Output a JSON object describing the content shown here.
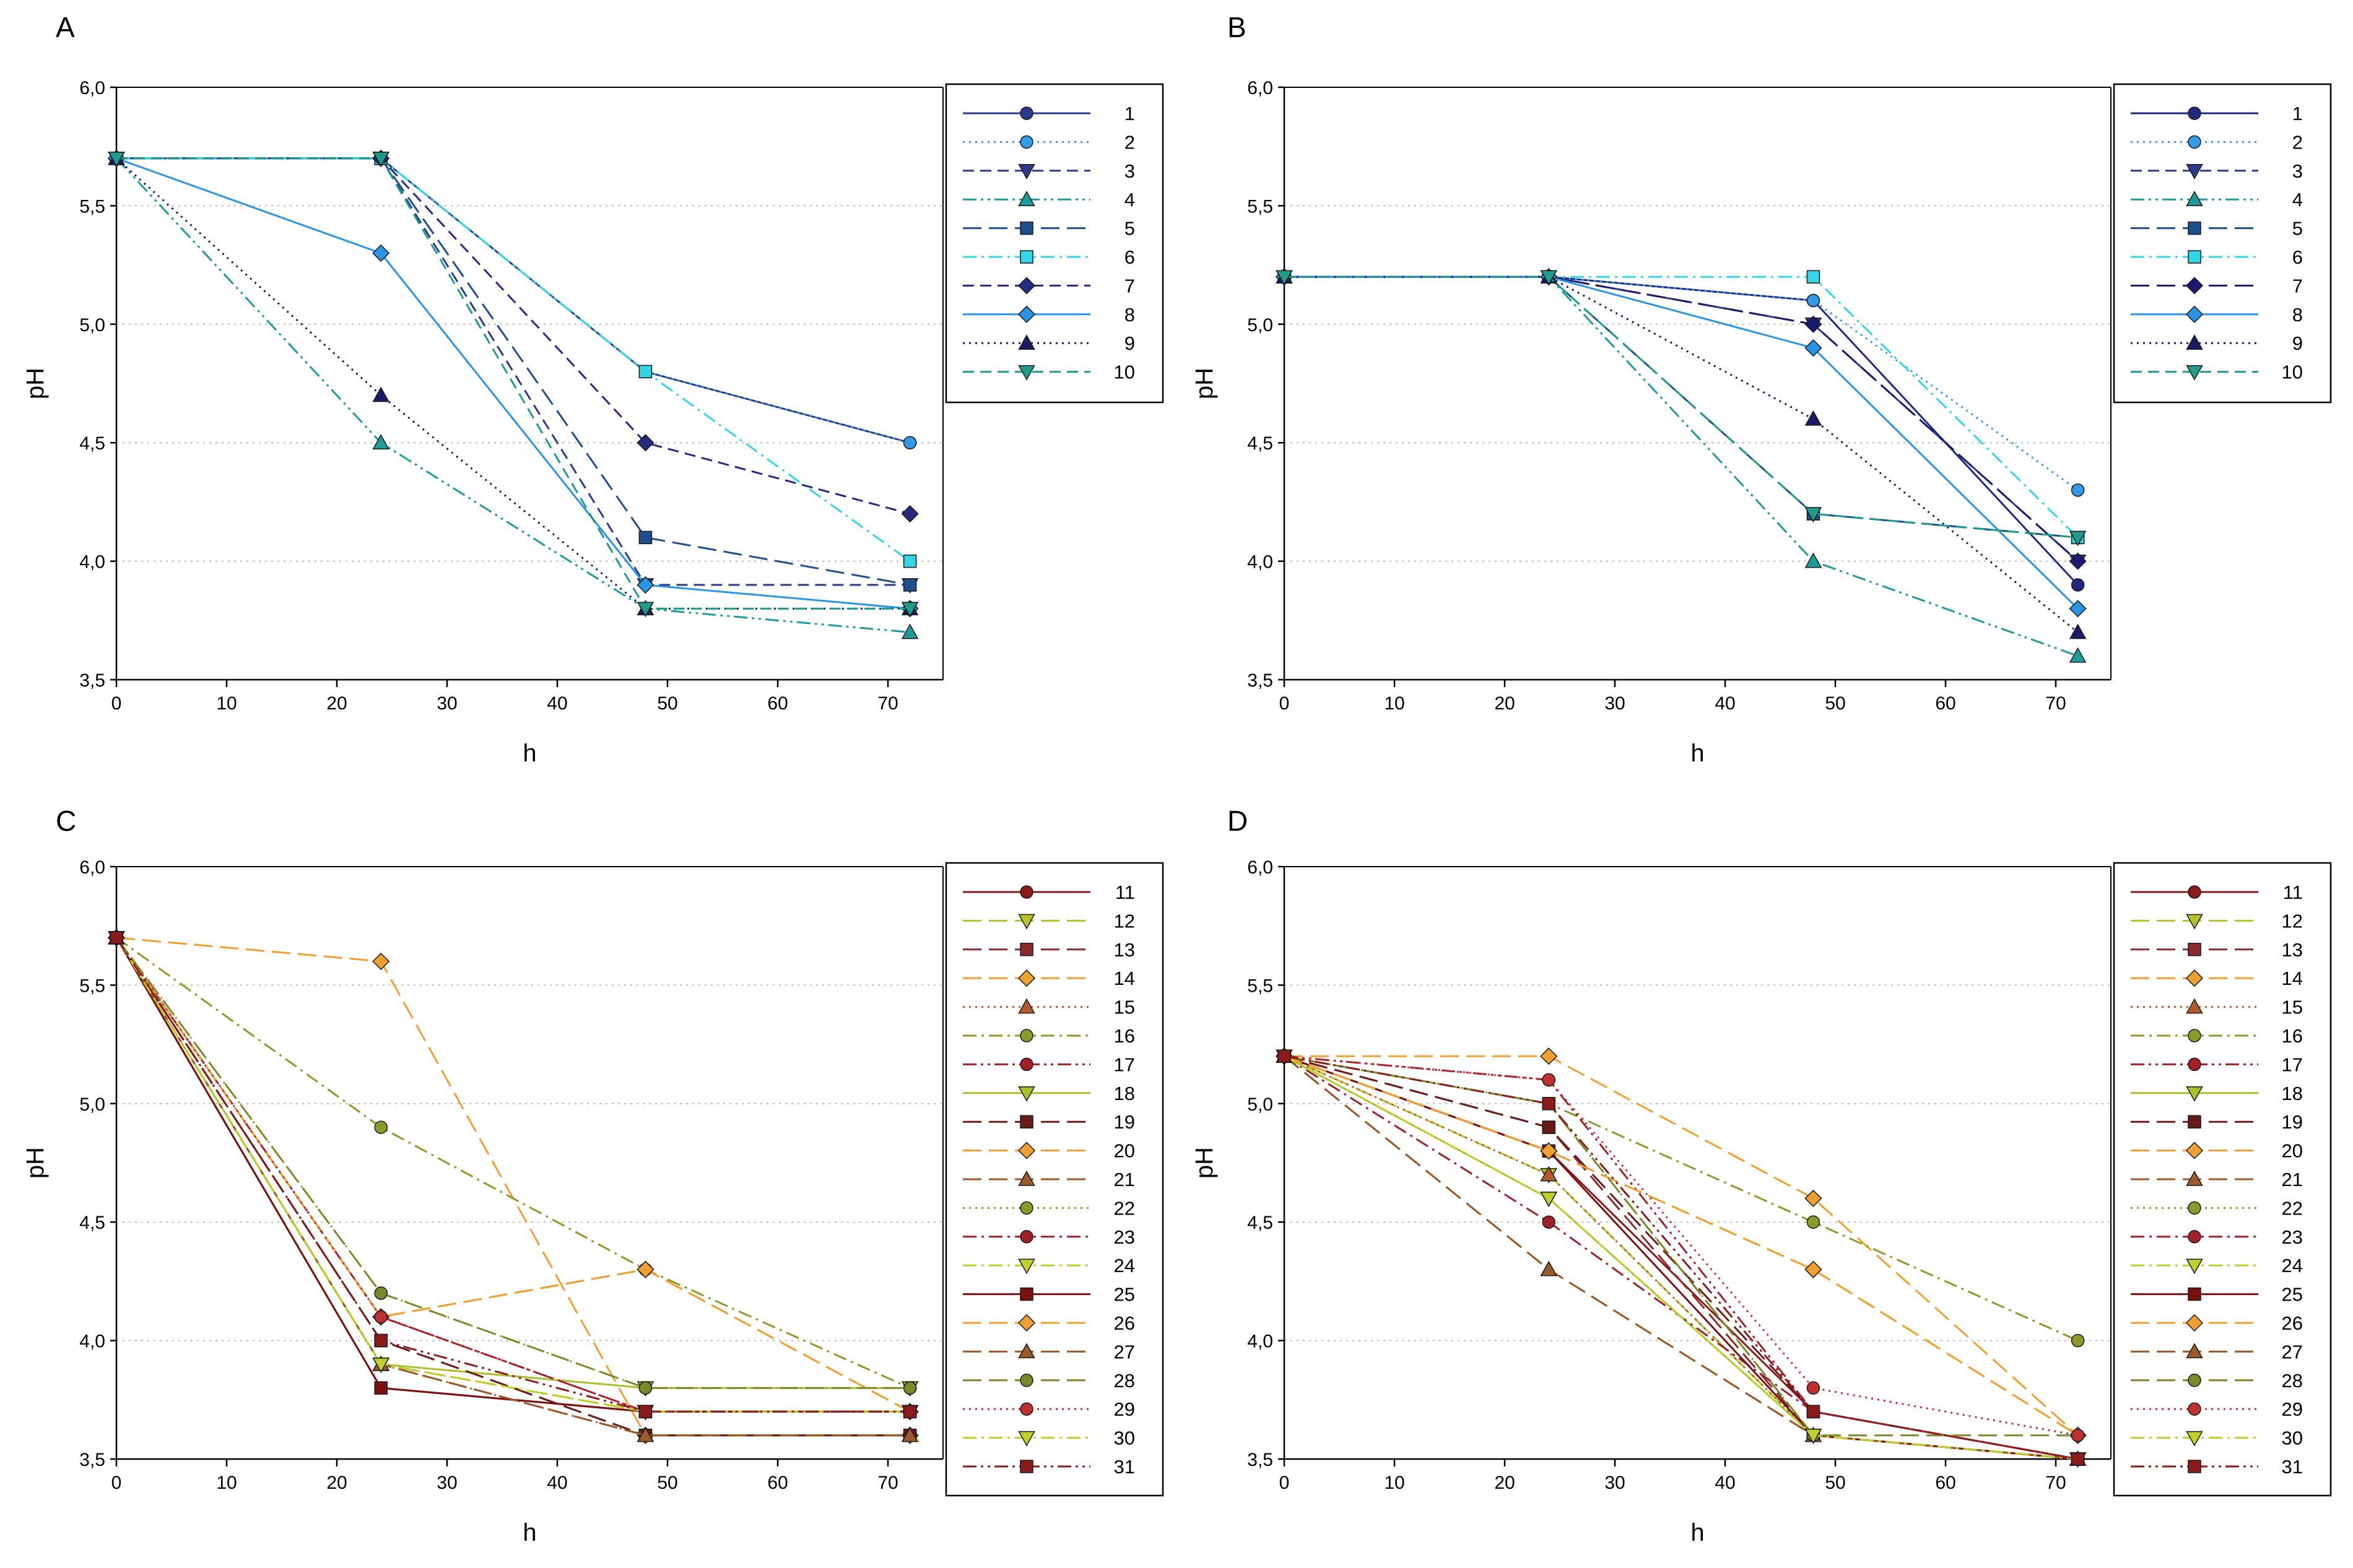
{
  "chart_data": [
    {
      "type": "line",
      "panel": "A",
      "xlabel": "h",
      "ylabel": "pH",
      "xlim": [
        0,
        75
      ],
      "ylim": [
        3.5,
        6.0
      ],
      "xticks": [
        "0",
        "10",
        "20",
        "30",
        "40",
        "50",
        "60",
        "70"
      ],
      "yticks": [
        "3,5",
        "4,0",
        "4,5",
        "5,0",
        "5,5",
        "6,0"
      ],
      "grid": "horizontal dotted",
      "legend": "right",
      "x": [
        0,
        24,
        48,
        72
      ],
      "series": [
        {
          "name": "1",
          "values": [
            5.7,
            5.7,
            4.8,
            4.5
          ],
          "color": "#2b3a8c",
          "dash": "solid",
          "marker": "circle"
        },
        {
          "name": "2",
          "values": [
            5.7,
            5.7,
            4.8,
            4.5
          ],
          "color": "#3399e6",
          "dash": "dot",
          "marker": "circle"
        },
        {
          "name": "3",
          "values": [
            5.7,
            5.7,
            3.9,
            3.9
          ],
          "color": "#2b3a8c",
          "dash": "dash",
          "marker": "triangle-down"
        },
        {
          "name": "4",
          "values": [
            5.7,
            4.5,
            3.8,
            3.7
          ],
          "color": "#1f9b9b",
          "dash": "dashdotdot",
          "marker": "triangle-up"
        },
        {
          "name": "5",
          "values": [
            5.7,
            5.7,
            4.1,
            3.9
          ],
          "color": "#1f4e8c",
          "dash": "longdash",
          "marker": "square"
        },
        {
          "name": "6",
          "values": [
            5.7,
            5.7,
            4.8,
            4.0
          ],
          "color": "#33d6e6",
          "dash": "dashdot",
          "marker": "square"
        },
        {
          "name": "7",
          "values": [
            5.7,
            5.7,
            4.5,
            4.2
          ],
          "color": "#242a80",
          "dash": "dash",
          "marker": "diamond"
        },
        {
          "name": "8",
          "values": [
            5.7,
            5.3,
            3.9,
            3.8
          ],
          "color": "#2a94e6",
          "dash": "solid",
          "marker": "diamond"
        },
        {
          "name": "9",
          "values": [
            5.7,
            4.7,
            3.8,
            3.8
          ],
          "color": "#1a1a66",
          "dash": "dot",
          "marker": "triangle-up"
        },
        {
          "name": "10",
          "values": [
            5.7,
            5.7,
            3.8,
            3.8
          ],
          "color": "#1f9b8c",
          "dash": "dash",
          "marker": "triangle-down"
        }
      ]
    },
    {
      "type": "line",
      "panel": "B",
      "xlabel": "h",
      "ylabel": "pH",
      "xlim": [
        0,
        75
      ],
      "ylim": [
        3.5,
        6.0
      ],
      "xticks": [
        "0",
        "10",
        "20",
        "30",
        "40",
        "50",
        "60",
        "70"
      ],
      "yticks": [
        "3,5",
        "4,0",
        "4,5",
        "5,0",
        "5,5",
        "6,0"
      ],
      "grid": "horizontal dotted",
      "legend": "right",
      "x": [
        0,
        24,
        48,
        72
      ],
      "series": [
        {
          "name": "1",
          "values": [
            5.2,
            5.2,
            5.1,
            3.9
          ],
          "color": "#1f2a80",
          "dash": "solid",
          "marker": "circle"
        },
        {
          "name": "2",
          "values": [
            5.2,
            5.2,
            5.1,
            4.3
          ],
          "color": "#3399e6",
          "dash": "dot",
          "marker": "circle"
        },
        {
          "name": "3",
          "values": [
            5.2,
            5.2,
            5.0,
            4.0
          ],
          "color": "#2b3a8c",
          "dash": "dash",
          "marker": "triangle-down"
        },
        {
          "name": "4",
          "values": [
            5.2,
            5.2,
            4.0,
            3.6
          ],
          "color": "#1f9b9b",
          "dash": "dashdotdot",
          "marker": "triangle-up"
        },
        {
          "name": "5",
          "values": [
            5.2,
            5.2,
            4.2,
            4.1
          ],
          "color": "#1f4e8c",
          "dash": "longdash",
          "marker": "square"
        },
        {
          "name": "6",
          "values": [
            5.2,
            5.2,
            5.2,
            4.1
          ],
          "color": "#33d6e6",
          "dash": "dashdot",
          "marker": "square"
        },
        {
          "name": "7",
          "values": [
            5.2,
            5.2,
            5.0,
            4.0
          ],
          "color": "#1a1a73",
          "dash": "longdash",
          "marker": "diamond"
        },
        {
          "name": "8",
          "values": [
            5.2,
            5.2,
            4.9,
            3.8
          ],
          "color": "#2a94e6",
          "dash": "solid",
          "marker": "diamond"
        },
        {
          "name": "9",
          "values": [
            5.2,
            5.2,
            4.6,
            3.7
          ],
          "color": "#1a1a66",
          "dash": "dot",
          "marker": "triangle-up"
        },
        {
          "name": "10",
          "values": [
            5.2,
            5.2,
            4.2,
            4.1
          ],
          "color": "#1f9b8c",
          "dash": "dash",
          "marker": "triangle-down"
        }
      ]
    },
    {
      "type": "line",
      "panel": "C",
      "xlabel": "h",
      "ylabel": "pH",
      "xlim": [
        0,
        75
      ],
      "ylim": [
        3.5,
        6.0
      ],
      "xticks": [
        "0",
        "10",
        "20",
        "30",
        "40",
        "50",
        "60",
        "70"
      ],
      "yticks": [
        "3,5",
        "4,0",
        "4,5",
        "5,0",
        "5,5",
        "6,0"
      ],
      "grid": "horizontal dotted",
      "legend": "right",
      "x": [
        0,
        24,
        48,
        72
      ],
      "series": [
        {
          "name": "11",
          "values": [
            5.7,
            3.8,
            3.7,
            3.7
          ],
          "color": "#8b1a1a",
          "dash": "solid",
          "marker": "circle"
        },
        {
          "name": "12",
          "values": [
            5.7,
            3.9,
            3.7,
            3.7
          ],
          "color": "#b5c22a",
          "dash": "longdash",
          "marker": "triangle-down"
        },
        {
          "name": "13",
          "values": [
            5.7,
            4.0,
            3.6,
            3.6
          ],
          "color": "#8b2a2a",
          "dash": "longdash",
          "marker": "square"
        },
        {
          "name": "14",
          "values": [
            5.7,
            5.6,
            3.6,
            3.6
          ],
          "color": "#f0a030",
          "dash": "longdash",
          "marker": "diamond"
        },
        {
          "name": "15",
          "values": [
            5.7,
            3.9,
            3.6,
            3.6
          ],
          "color": "#b55a2a",
          "dash": "dot",
          "marker": "triangle-up"
        },
        {
          "name": "16",
          "values": [
            5.7,
            4.9,
            4.3,
            3.8
          ],
          "color": "#8c9a2a",
          "dash": "dashdot",
          "marker": "circle"
        },
        {
          "name": "17",
          "values": [
            5.7,
            4.1,
            3.7,
            3.7
          ],
          "color": "#a0202a",
          "dash": "dashdotdot",
          "marker": "circle"
        },
        {
          "name": "18",
          "values": [
            5.7,
            3.9,
            3.8,
            3.8
          ],
          "color": "#a8c02a",
          "dash": "solid",
          "marker": "triangle-down"
        },
        {
          "name": "19",
          "values": [
            5.7,
            4.0,
            3.6,
            3.6
          ],
          "color": "#6b1a1a",
          "dash": "longdash",
          "marker": "square"
        },
        {
          "name": "20",
          "values": [
            5.7,
            4.1,
            4.3,
            3.7
          ],
          "color": "#f0a030",
          "dash": "longdash",
          "marker": "diamond"
        },
        {
          "name": "21",
          "values": [
            5.7,
            3.9,
            3.6,
            3.6
          ],
          "color": "#9a5a2a",
          "dash": "longdash",
          "marker": "triangle-up"
        },
        {
          "name": "22",
          "values": [
            5.7,
            4.2,
            3.8,
            3.8
          ],
          "color": "#8c9a2a",
          "dash": "dot",
          "marker": "circle"
        },
        {
          "name": "23",
          "values": [
            5.7,
            4.1,
            3.7,
            3.7
          ],
          "color": "#a0202a",
          "dash": "dashdot",
          "marker": "circle"
        },
        {
          "name": "24",
          "values": [
            5.7,
            3.9,
            3.7,
            3.7
          ],
          "color": "#c0d02a",
          "dash": "dashdot",
          "marker": "triangle-down"
        },
        {
          "name": "25",
          "values": [
            5.7,
            3.8,
            3.7,
            3.7
          ],
          "color": "#7a1010",
          "dash": "solid",
          "marker": "square"
        },
        {
          "name": "26",
          "values": [
            5.7,
            4.1,
            4.3,
            3.7
          ],
          "color": "#f0a030",
          "dash": "longdash",
          "marker": "diamond"
        },
        {
          "name": "27",
          "values": [
            5.7,
            3.9,
            3.6,
            3.6
          ],
          "color": "#9a5a2a",
          "dash": "longdash",
          "marker": "triangle-up"
        },
        {
          "name": "28",
          "values": [
            5.7,
            4.2,
            3.8,
            3.8
          ],
          "color": "#7a8a2a",
          "dash": "longdash",
          "marker": "circle"
        },
        {
          "name": "29",
          "values": [
            5.7,
            4.1,
            3.7,
            3.7
          ],
          "color": "#c03030",
          "dash": "dot",
          "marker": "circle"
        },
        {
          "name": "30",
          "values": [
            5.7,
            3.9,
            3.7,
            3.7
          ],
          "color": "#c0d02a",
          "dash": "dashdot",
          "marker": "triangle-down"
        },
        {
          "name": "31",
          "values": [
            5.7,
            4.0,
            3.7,
            3.7
          ],
          "color": "#8b1a1a",
          "dash": "dashdotdot",
          "marker": "square"
        }
      ]
    },
    {
      "type": "line",
      "panel": "D",
      "xlabel": "h",
      "ylabel": "pH",
      "xlim": [
        0,
        75
      ],
      "ylim": [
        3.5,
        6.0
      ],
      "xticks": [
        "0",
        "10",
        "20",
        "30",
        "40",
        "50",
        "60",
        "70"
      ],
      "yticks": [
        "3,5",
        "4,0",
        "4,5",
        "5,0",
        "5,5",
        "6,0"
      ],
      "grid": "horizontal dotted",
      "legend": "right",
      "x": [
        0,
        24,
        48,
        72
      ],
      "series": [
        {
          "name": "11",
          "values": [
            5.2,
            4.8,
            3.7,
            3.5
          ],
          "color": "#8b1a1a",
          "dash": "solid",
          "marker": "circle"
        },
        {
          "name": "12",
          "values": [
            5.2,
            4.7,
            3.6,
            3.5
          ],
          "color": "#b5c22a",
          "dash": "longdash",
          "marker": "triangle-down"
        },
        {
          "name": "13",
          "values": [
            5.2,
            4.9,
            3.6,
            3.5
          ],
          "color": "#8b2a2a",
          "dash": "longdash",
          "marker": "square"
        },
        {
          "name": "14",
          "values": [
            5.2,
            5.2,
            4.6,
            3.6
          ],
          "color": "#f0a030",
          "dash": "longdash",
          "marker": "diamond"
        },
        {
          "name": "15",
          "values": [
            5.2,
            4.7,
            3.6,
            3.5
          ],
          "color": "#b55a2a",
          "dash": "dot",
          "marker": "triangle-up"
        },
        {
          "name": "16",
          "values": [
            5.2,
            5.0,
            4.5,
            4.0
          ],
          "color": "#8c9a2a",
          "dash": "dashdot",
          "marker": "circle"
        },
        {
          "name": "17",
          "values": [
            5.2,
            5.1,
            3.7,
            3.5
          ],
          "color": "#a0202a",
          "dash": "dashdotdot",
          "marker": "circle"
        },
        {
          "name": "18",
          "values": [
            5.2,
            4.6,
            3.6,
            3.5
          ],
          "color": "#a8c02a",
          "dash": "solid",
          "marker": "triangle-down"
        },
        {
          "name": "19",
          "values": [
            5.2,
            4.9,
            3.7,
            3.5
          ],
          "color": "#6b1a1a",
          "dash": "longdash",
          "marker": "square"
        },
        {
          "name": "20",
          "values": [
            5.2,
            4.8,
            4.3,
            3.6
          ],
          "color": "#f0a030",
          "dash": "longdash",
          "marker": "diamond"
        },
        {
          "name": "21",
          "values": [
            5.2,
            4.3,
            3.6,
            3.5
          ],
          "color": "#9a5a2a",
          "dash": "longdash",
          "marker": "triangle-up"
        },
        {
          "name": "22",
          "values": [
            5.2,
            5.0,
            3.6,
            3.5
          ],
          "color": "#8c9a2a",
          "dash": "dot",
          "marker": "circle"
        },
        {
          "name": "23",
          "values": [
            5.2,
            4.5,
            3.7,
            3.5
          ],
          "color": "#a0202a",
          "dash": "dashdot",
          "marker": "circle"
        },
        {
          "name": "24",
          "values": [
            5.2,
            4.6,
            3.6,
            3.5
          ],
          "color": "#c0d02a",
          "dash": "dashdot",
          "marker": "triangle-down"
        },
        {
          "name": "25",
          "values": [
            5.2,
            4.8,
            3.6,
            3.5
          ],
          "color": "#7a1010",
          "dash": "solid",
          "marker": "square"
        },
        {
          "name": "26",
          "values": [
            5.2,
            4.8,
            4.3,
            3.6
          ],
          "color": "#f0a030",
          "dash": "longdash",
          "marker": "diamond"
        },
        {
          "name": "27",
          "values": [
            5.2,
            4.3,
            3.6,
            3.5
          ],
          "color": "#9a5a2a",
          "dash": "longdash",
          "marker": "triangle-up"
        },
        {
          "name": "28",
          "values": [
            5.2,
            5.0,
            3.6,
            3.6
          ],
          "color": "#7a8a2a",
          "dash": "longdash",
          "marker": "circle"
        },
        {
          "name": "29",
          "values": [
            5.2,
            5.1,
            3.8,
            3.6
          ],
          "color": "#c03030",
          "dash": "dot",
          "marker": "circle"
        },
        {
          "name": "30",
          "values": [
            5.2,
            4.6,
            3.6,
            3.5
          ],
          "color": "#c0d02a",
          "dash": "dashdot",
          "marker": "triangle-down"
        },
        {
          "name": "31",
          "values": [
            5.2,
            5.0,
            3.7,
            3.5
          ],
          "color": "#8b1a1a",
          "dash": "dashdotdot",
          "marker": "square"
        }
      ]
    }
  ]
}
